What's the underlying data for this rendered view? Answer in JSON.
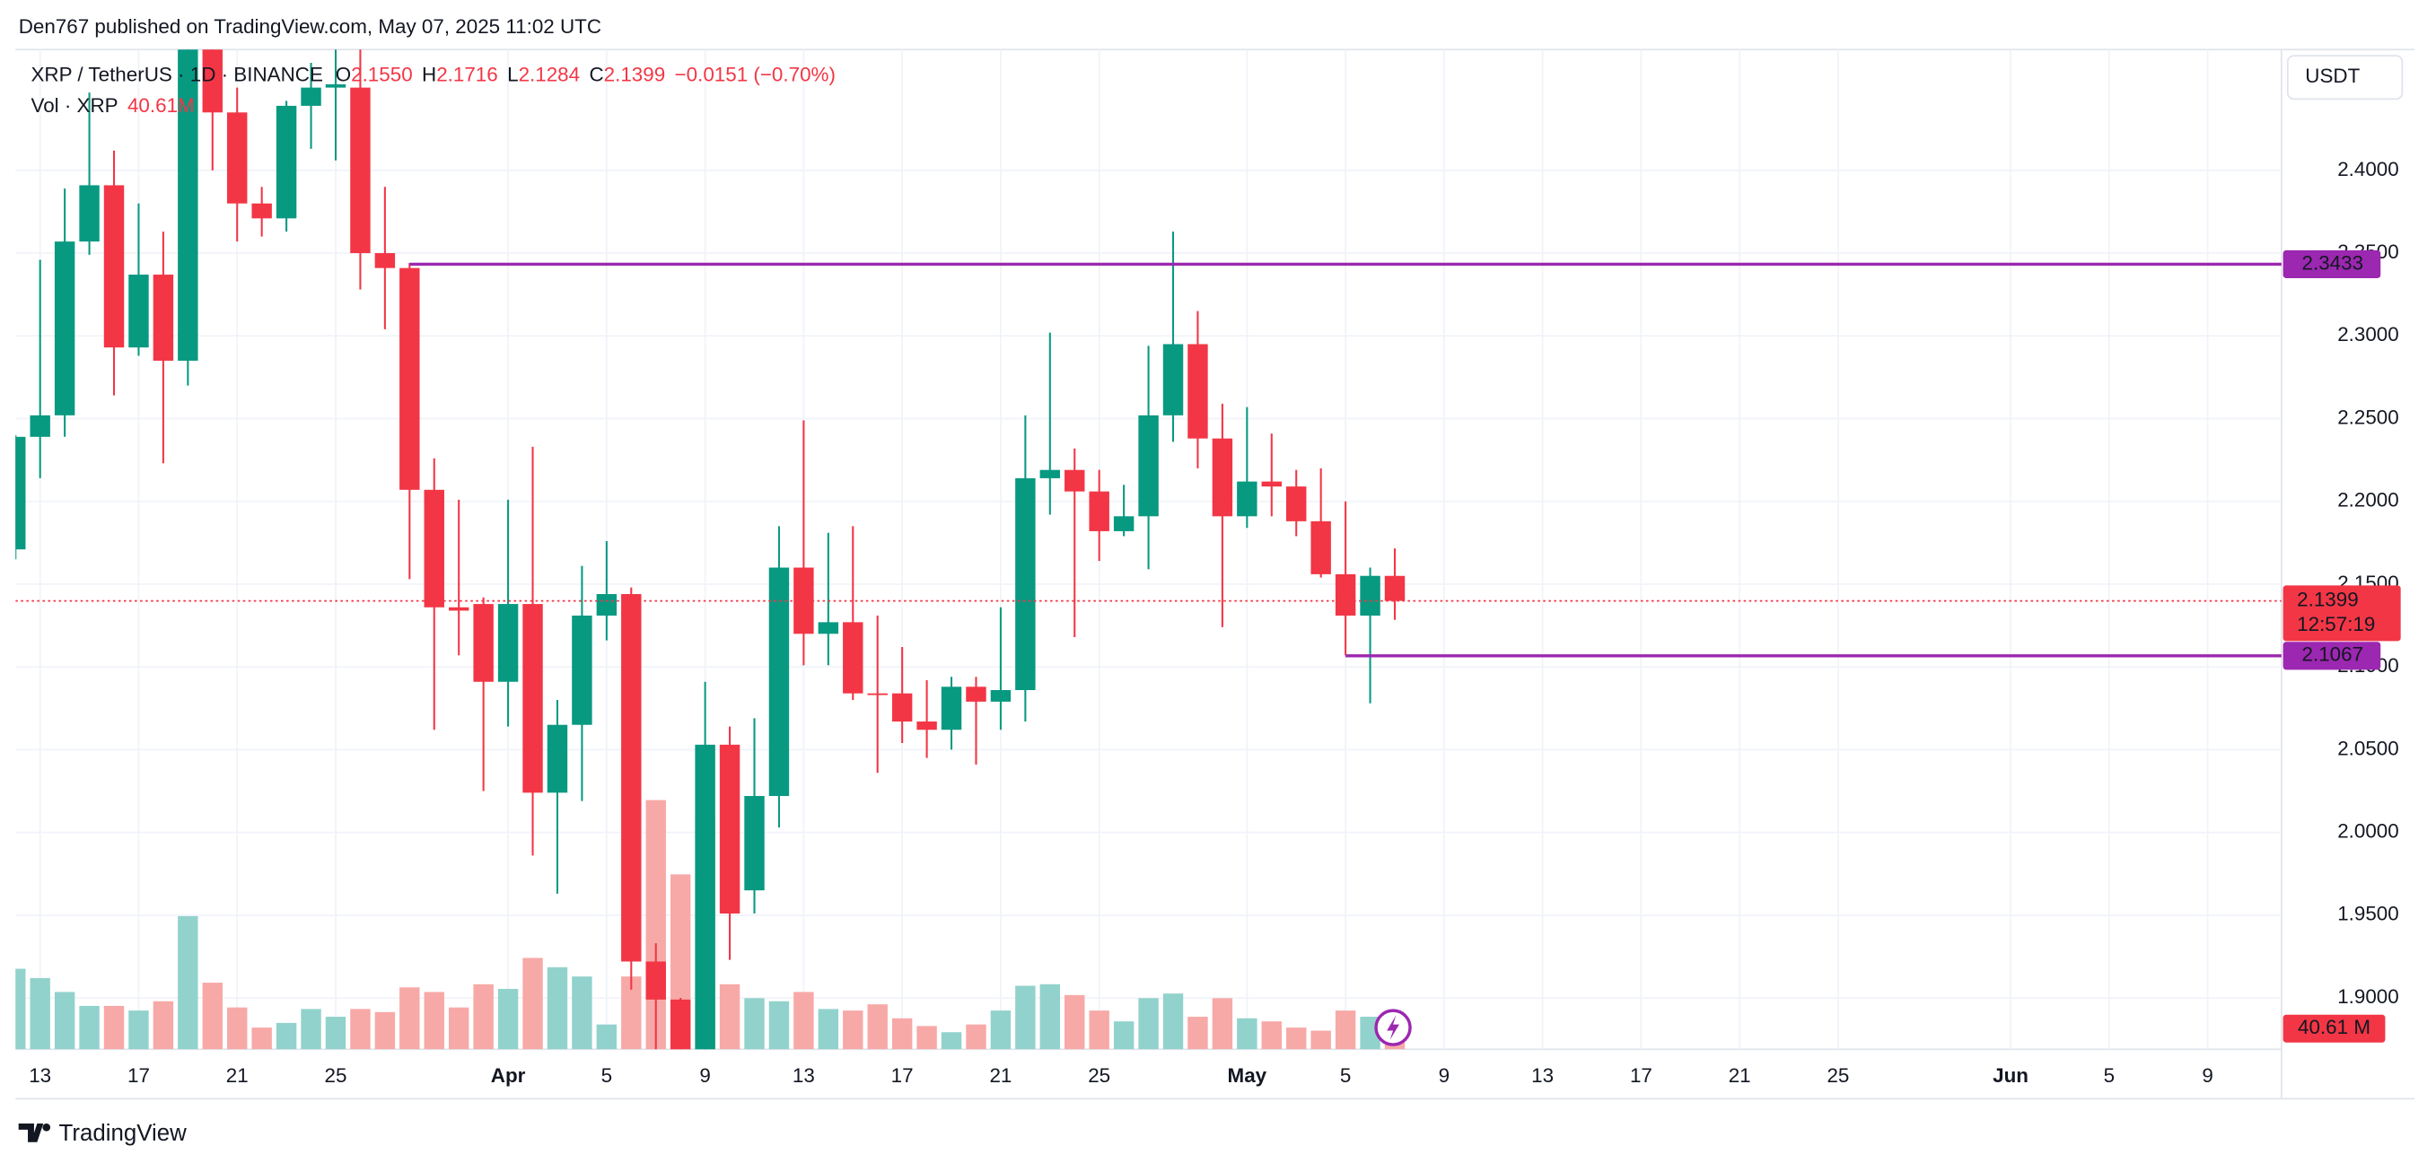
{
  "header": {
    "publisher": "Den767 published on TradingView.com, May 07, 2025 11:02 UTC"
  },
  "chart_data": {
    "type": "candlestick",
    "symbol": "XRP / TetherUS · 1D · BINANCE",
    "ohlc_header": [
      {
        "label": "O",
        "value": "2.1550"
      },
      {
        "label": "H",
        "value": "2.1716"
      },
      {
        "label": "L",
        "value": "2.1284"
      },
      {
        "label": "C",
        "value": "2.1399"
      }
    ],
    "change": "−0.0151 (−0.70%)",
    "volume_title": "Vol · XRP",
    "volume_text": "40.61M",
    "volume_tag": "40.61 M",
    "currency": "USDT",
    "countdown": "12:57:19",
    "x": [
      "2025-03-12",
      "2025-03-13",
      "2025-03-14",
      "2025-03-15",
      "2025-03-16",
      "2025-03-17",
      "2025-03-18",
      "2025-03-19",
      "2025-03-20",
      "2025-03-21",
      "2025-03-22",
      "2025-03-23",
      "2025-03-24",
      "2025-03-25",
      "2025-03-26",
      "2025-03-27",
      "2025-03-28",
      "2025-03-29",
      "2025-03-30",
      "2025-03-31",
      "2025-04-01",
      "2025-04-02",
      "2025-04-03",
      "2025-04-04",
      "2025-04-05",
      "2025-04-06",
      "2025-04-07",
      "2025-04-08",
      "2025-04-09",
      "2025-04-10",
      "2025-04-11",
      "2025-04-12",
      "2025-04-13",
      "2025-04-14",
      "2025-04-15",
      "2025-04-16",
      "2025-04-17",
      "2025-04-18",
      "2025-04-19",
      "2025-04-20",
      "2025-04-21",
      "2025-04-22",
      "2025-04-23",
      "2025-04-24",
      "2025-04-25",
      "2025-04-26",
      "2025-04-27",
      "2025-04-28",
      "2025-04-29",
      "2025-04-30",
      "2025-05-01",
      "2025-05-02",
      "2025-05-03",
      "2025-05-04",
      "2025-05-05",
      "2025-05-06",
      "2025-05-07"
    ],
    "open": [
      2.171,
      2.239,
      2.252,
      2.357,
      2.391,
      2.293,
      2.337,
      2.285,
      2.49,
      2.435,
      2.38,
      2.371,
      2.439,
      2.45,
      2.45,
      2.35,
      2.341,
      2.207,
      2.136,
      2.138,
      2.091,
      2.138,
      2.024,
      2.065,
      2.131,
      2.144,
      1.922,
      1.899,
      1.82,
      2.053,
      1.965,
      2.022,
      2.16,
      2.12,
      2.127,
      2.084,
      2.084,
      2.067,
      2.062,
      2.088,
      2.079,
      2.086,
      2.214,
      2.219,
      2.206,
      2.182,
      2.191,
      2.252,
      2.295,
      2.238,
      2.191,
      2.212,
      2.209,
      2.188,
      2.156,
      2.131,
      2.155
    ],
    "high": [
      2.24,
      2.346,
      2.389,
      2.447,
      2.412,
      2.38,
      2.363,
      2.5,
      2.52,
      2.45,
      2.39,
      2.442,
      2.465,
      2.48,
      2.475,
      2.39,
      2.344,
      2.226,
      2.201,
      2.142,
      2.201,
      2.233,
      2.08,
      2.161,
      2.176,
      2.148,
      1.933,
      1.9,
      2.091,
      2.064,
      2.069,
      2.185,
      2.249,
      2.181,
      2.185,
      2.131,
      2.112,
      2.092,
      2.094,
      2.094,
      2.136,
      2.252,
      2.302,
      2.232,
      2.219,
      2.21,
      2.294,
      2.363,
      2.315,
      2.259,
      2.257,
      2.241,
      2.219,
      2.22,
      2.2,
      2.16,
      2.1716
    ],
    "low": [
      2.165,
      2.214,
      2.239,
      2.349,
      2.264,
      2.288,
      2.223,
      2.27,
      2.4,
      2.357,
      2.36,
      2.363,
      2.413,
      2.406,
      2.328,
      2.304,
      2.153,
      2.062,
      2.107,
      2.025,
      2.064,
      1.986,
      1.963,
      2.019,
      2.116,
      1.905,
      1.85,
      1.8,
      1.8,
      1.923,
      1.951,
      2.003,
      2.101,
      2.101,
      2.08,
      2.036,
      2.054,
      2.045,
      2.05,
      2.041,
      2.062,
      2.067,
      2.192,
      2.118,
      2.164,
      2.179,
      2.159,
      2.236,
      2.22,
      2.124,
      2.184,
      2.191,
      2.179,
      2.154,
      2.107,
      2.078,
      2.1284
    ],
    "close": [
      2.239,
      2.252,
      2.357,
      2.391,
      2.293,
      2.337,
      2.285,
      2.49,
      2.435,
      2.38,
      2.371,
      2.439,
      2.45,
      2.452,
      2.35,
      2.341,
      2.207,
      2.136,
      2.134,
      2.091,
      2.138,
      2.024,
      2.065,
      2.131,
      2.144,
      1.922,
      1.899,
      1.82,
      2.053,
      1.951,
      2.022,
      2.16,
      2.12,
      2.127,
      2.084,
      2.083,
      2.067,
      2.062,
      2.088,
      2.079,
      2.086,
      2.214,
      2.219,
      2.206,
      2.182,
      2.191,
      2.252,
      2.295,
      2.238,
      2.191,
      2.212,
      2.209,
      2.188,
      2.156,
      2.131,
      2.155,
      2.1399
    ],
    "volume": [
      104,
      92,
      74,
      56,
      56,
      50,
      62,
      172,
      86,
      54,
      28,
      34,
      52,
      42,
      52,
      48,
      80,
      74,
      54,
      84,
      78,
      118,
      106,
      94,
      32,
      94,
      322,
      226,
      300,
      84,
      66,
      62,
      74,
      52,
      50,
      58,
      40,
      30,
      22,
      32,
      50,
      82,
      84,
      70,
      50,
      36,
      66,
      72,
      42,
      66,
      40,
      36,
      28,
      24,
      50,
      42,
      40.61
    ],
    "up_color": "#089981",
    "down_color": "#f23645",
    "volume_up_color": "#92d2cc",
    "volume_down_color": "#f7a9a7",
    "xlim": [
      "2025-03-12",
      "2025-06-12"
    ],
    "ylim": [
      1.869,
      2.473
    ],
    "yticks": [
      {
        "value": 1.9,
        "label": "1.9000"
      },
      {
        "value": 1.95,
        "label": "1.9500"
      },
      {
        "value": 2.0,
        "label": "2.0000"
      },
      {
        "value": 2.05,
        "label": "2.0500"
      },
      {
        "value": 2.1,
        "label": "2.1000"
      },
      {
        "value": 2.15,
        "label": "2.1500"
      },
      {
        "value": 2.2,
        "label": "2.2000"
      },
      {
        "value": 2.25,
        "label": "2.2500"
      },
      {
        "value": 2.3,
        "label": "2.3000"
      },
      {
        "value": 2.35,
        "label": "2.3500"
      },
      {
        "value": 2.4,
        "label": "2.4000"
      }
    ],
    "xticks": [
      {
        "value": "2025-03-13",
        "label": "13"
      },
      {
        "value": "2025-03-17",
        "label": "17"
      },
      {
        "value": "2025-03-21",
        "label": "21"
      },
      {
        "value": "2025-03-25",
        "label": "25"
      },
      {
        "value": "2025-04-01",
        "label": "Apr"
      },
      {
        "value": "2025-04-05",
        "label": "5"
      },
      {
        "value": "2025-04-09",
        "label": "9"
      },
      {
        "value": "2025-04-13",
        "label": "13"
      },
      {
        "value": "2025-04-17",
        "label": "17"
      },
      {
        "value": "2025-04-21",
        "label": "21"
      },
      {
        "value": "2025-04-25",
        "label": "25"
      },
      {
        "value": "2025-05-01",
        "label": "May"
      },
      {
        "value": "2025-05-05",
        "label": "5"
      },
      {
        "value": "2025-05-09",
        "label": "9"
      },
      {
        "value": "2025-05-13",
        "label": "13"
      },
      {
        "value": "2025-05-17",
        "label": "17"
      },
      {
        "value": "2025-05-21",
        "label": "21"
      },
      {
        "value": "2025-05-25",
        "label": "25"
      },
      {
        "value": "2025-06-01",
        "label": "Jun"
      },
      {
        "value": "2025-06-05",
        "label": "5"
      },
      {
        "value": "2025-06-09",
        "label": "9"
      }
    ],
    "grid": true,
    "hlines": [
      {
        "value": 2.3433,
        "from": "2025-03-28",
        "color": "#9c27b0"
      },
      {
        "value": 2.1067,
        "from": "2025-05-05",
        "color": "#9c27b0"
      }
    ]
  },
  "footer": {
    "brand": "TradingView"
  }
}
